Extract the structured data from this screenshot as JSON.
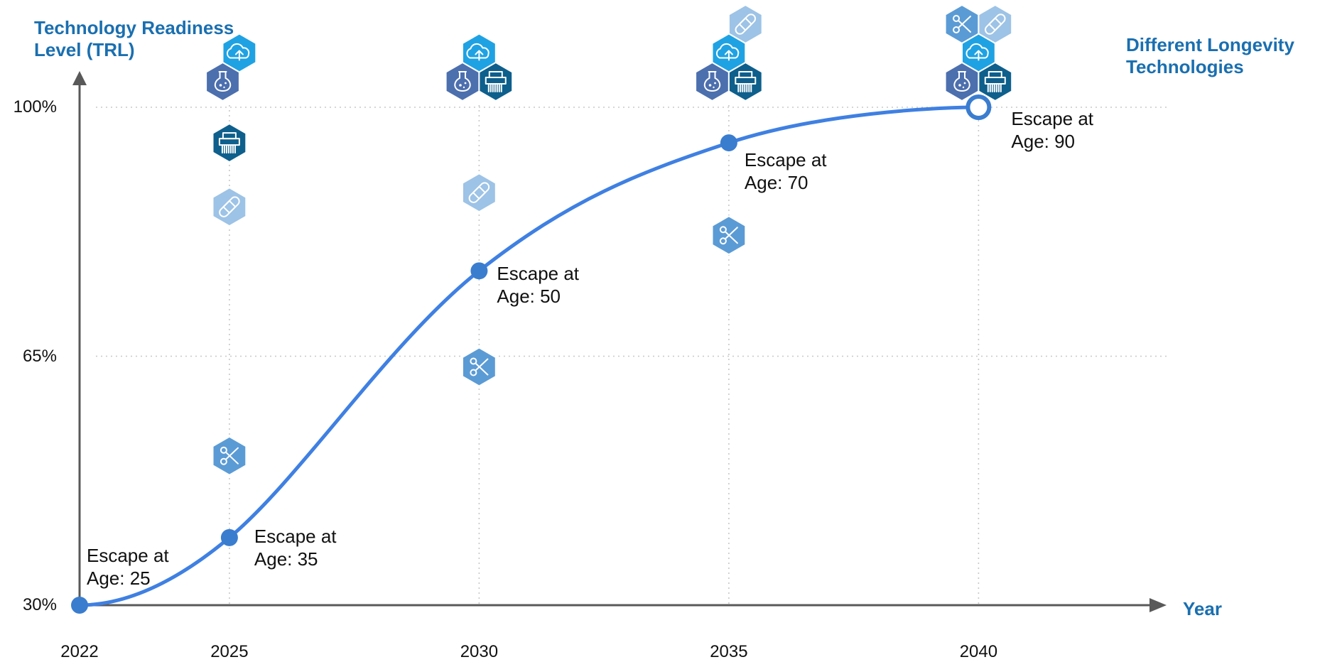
{
  "chart_data": {
    "type": "line",
    "title": "",
    "ylabel": "Technology Readiness Level (TRL)",
    "xlabel": "Year",
    "legend_label": "Different Longevity Technologies",
    "x": [
      2022,
      2025,
      2030,
      2035,
      2040
    ],
    "x_tick_labels": [
      "2022",
      "2025",
      "2030",
      "2035",
      "2040"
    ],
    "y_ticks": [
      30,
      65,
      100
    ],
    "y_tick_labels": [
      "30%",
      "65%",
      "100%"
    ],
    "ylim": [
      30,
      100
    ],
    "xlim": [
      2022,
      2040
    ],
    "series": [
      {
        "points": [
          {
            "x": 2022,
            "y": 30,
            "annotation": [
              "Escape at",
              "Age: 25"
            ]
          },
          {
            "x": 2025,
            "y": 39.5,
            "annotation": [
              "Escape at",
              "Age: 35"
            ]
          },
          {
            "x": 2030,
            "y": 77,
            "annotation": [
              "Escape at",
              "Age: 50"
            ]
          },
          {
            "x": 2035,
            "y": 95,
            "annotation": [
              "Escape at",
              "Age: 70"
            ]
          },
          {
            "x": 2040,
            "y": 100,
            "annotation": [
              "Escape at",
              "Age: 90"
            ]
          }
        ]
      }
    ],
    "grid": true,
    "technology_icons": [
      {
        "year": 2025,
        "level": 95,
        "icon": "printer-icon",
        "color": "#0e5f8c"
      },
      {
        "year": 2025,
        "level": 86,
        "icon": "bandage-icon",
        "color": "#9dc3e6"
      },
      {
        "year": 2025,
        "level": 51,
        "icon": "scissors-icon",
        "color": "#5b9bd5"
      },
      {
        "year": 2030,
        "level": 88,
        "icon": "bandage-icon",
        "color": "#9dc3e6"
      },
      {
        "year": 2030,
        "level": 63.5,
        "icon": "scissors-icon",
        "color": "#5b9bd5"
      },
      {
        "year": 2035,
        "level": 82,
        "icon": "scissors-icon",
        "color": "#5b9bd5"
      }
    ],
    "icon_groups": [
      {
        "year": 2025,
        "icons": [
          {
            "icon": "cloud-upload-icon",
            "color": "#1fa2e3"
          },
          {
            "icon": "flask-icon",
            "color": "#4c6fae"
          }
        ]
      },
      {
        "year": 2030,
        "icons": [
          {
            "icon": "cloud-upload-icon",
            "color": "#1fa2e3"
          },
          {
            "icon": "flask-icon",
            "color": "#4c6fae"
          },
          {
            "icon": "printer-icon",
            "color": "#0e5f8c"
          }
        ]
      },
      {
        "year": 2035,
        "icons": [
          {
            "icon": "bandage-icon",
            "color": "#9dc3e6"
          },
          {
            "icon": "cloud-upload-icon",
            "color": "#1fa2e3"
          },
          {
            "icon": "flask-icon",
            "color": "#4c6fae"
          },
          {
            "icon": "printer-icon",
            "color": "#0e5f8c"
          }
        ]
      },
      {
        "year": 2040,
        "icons": [
          {
            "icon": "scissors-icon",
            "color": "#5b9bd5"
          },
          {
            "icon": "bandage-icon",
            "color": "#9dc3e6"
          },
          {
            "icon": "cloud-upload-icon",
            "color": "#1fa2e3"
          },
          {
            "icon": "flask-icon",
            "color": "#4c6fae"
          },
          {
            "icon": "printer-icon",
            "color": "#0e5f8c"
          }
        ]
      }
    ],
    "colors": {
      "curve": "#3f80e2",
      "point": "#3a7dcf",
      "axis": "#595959",
      "title": "#1a6fb0",
      "grid": "#c8c8c8"
    }
  }
}
